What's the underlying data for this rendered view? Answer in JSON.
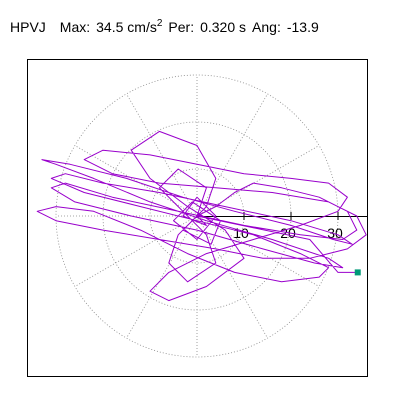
{
  "header": {
    "station": "HPVJ",
    "max_label": "Max:",
    "max_value": "34.5",
    "max_unit": "cm/s",
    "max_unit_exp": "2",
    "per_label": "Per:",
    "per_value": "0.320 s",
    "ang_label": "Ang:",
    "ang_value": "-13.9"
  },
  "chart_data": {
    "type": "line",
    "plot": "polar particle motion (hodogram)",
    "radial_ticks": [
      "10",
      "20",
      "30"
    ],
    "radial_tick_values": [
      10,
      20,
      30
    ],
    "grid_rings": [
      10,
      20,
      30
    ],
    "grid_spokes_deg": [
      0,
      30,
      60,
      90,
      120,
      150,
      180,
      210,
      240,
      270,
      300,
      330
    ],
    "grid": "dotted",
    "series": [
      {
        "values_note": "trace",
        "color": "#9900cc",
        "points": [
          [
            0,
            0
          ],
          [
            4,
            2
          ],
          [
            8,
            5
          ],
          [
            12,
            7
          ],
          [
            18,
            6
          ],
          [
            26,
            4
          ],
          [
            32,
            1
          ],
          [
            34,
            -3
          ],
          [
            31,
            -5
          ],
          [
            22,
            -4
          ],
          [
            10,
            -2
          ],
          [
            -4,
            1
          ],
          [
            -18,
            4
          ],
          [
            -28,
            7
          ],
          [
            -31,
            6
          ],
          [
            -26,
            3
          ],
          [
            -14,
            0
          ],
          [
            0,
            -3
          ],
          [
            14,
            -7
          ],
          [
            25,
            -10
          ],
          [
            31,
            -11
          ],
          [
            28,
            -9
          ],
          [
            16,
            -5
          ],
          [
            2,
            -1
          ],
          [
            -10,
            3
          ],
          [
            -22,
            8
          ],
          [
            -30,
            11
          ],
          [
            -33,
            12
          ],
          [
            -27,
            11
          ],
          [
            -15,
            8
          ],
          [
            -3,
            4
          ],
          [
            8,
            1
          ],
          [
            20,
            -2
          ],
          [
            29,
            -5
          ],
          [
            33,
            -6
          ],
          [
            30,
            -4
          ],
          [
            20,
            -1
          ],
          [
            6,
            2
          ],
          [
            -8,
            5
          ],
          [
            -20,
            7
          ],
          [
            -28,
            9
          ],
          [
            -31,
            8
          ],
          [
            -24,
            5
          ],
          [
            -12,
            2
          ],
          [
            0,
            -1
          ],
          [
            12,
            -4
          ],
          [
            22,
            -8
          ],
          [
            28,
            -11
          ],
          [
            26,
            -13
          ],
          [
            18,
            -14
          ],
          [
            8,
            -12
          ],
          [
            -2,
            -8
          ],
          [
            -12,
            -3
          ],
          [
            -22,
            1
          ],
          [
            -30,
            2
          ],
          [
            -34,
            1
          ],
          [
            -30,
            -1
          ],
          [
            -20,
            -3
          ],
          [
            -8,
            -5
          ],
          [
            4,
            -7
          ],
          [
            14,
            -9
          ],
          [
            24,
            -9
          ],
          [
            32,
            -7
          ],
          [
            36,
            -4
          ],
          [
            34,
            0
          ],
          [
            28,
            3
          ],
          [
            16,
            5
          ],
          [
            4,
            6
          ],
          [
            -8,
            7
          ],
          [
            -18,
            9
          ],
          [
            -24,
            12
          ],
          [
            -20,
            14
          ],
          [
            -10,
            13
          ],
          [
            0,
            11
          ],
          [
            10,
            9
          ],
          [
            20,
            8
          ],
          [
            28,
            7
          ],
          [
            32,
            4
          ],
          [
            30,
            1
          ],
          [
            22,
            -2
          ],
          [
            12,
            -5
          ],
          [
            2,
            -8
          ],
          [
            -6,
            -12
          ],
          [
            -10,
            -16
          ],
          [
            -6,
            -18
          ],
          [
            2,
            -15
          ],
          [
            10,
            -9
          ],
          [
            6,
            -3
          ],
          [
            -2,
            2
          ],
          [
            -10,
            8
          ],
          [
            -14,
            14
          ],
          [
            -8,
            18
          ],
          [
            0,
            15
          ],
          [
            4,
            8
          ],
          [
            2,
            2
          ],
          [
            -4,
            -4
          ],
          [
            -6,
            -10
          ],
          [
            -2,
            -14
          ],
          [
            4,
            -10
          ],
          [
            2,
            -4
          ],
          [
            -4,
            2
          ],
          [
            -8,
            6
          ],
          [
            -4,
            10
          ],
          [
            2,
            6
          ],
          [
            0,
            0
          ],
          [
            -3,
            -3
          ],
          [
            3,
            -6
          ],
          [
            5,
            -1
          ],
          [
            -1,
            3
          ],
          [
            -5,
            -1
          ],
          [
            0,
            -5
          ],
          [
            4,
            0
          ],
          [
            0,
            4
          ],
          [
            -3,
            0
          ],
          [
            2,
            -2
          ],
          [
            0,
            0
          ],
          [
            24,
            -5
          ],
          [
            30,
            -12
          ],
          [
            34.2,
            -12.0
          ]
        ]
      }
    ],
    "end_marker_color": "#009977"
  }
}
